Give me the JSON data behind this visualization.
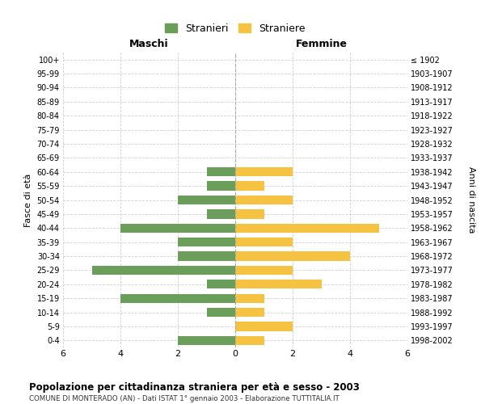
{
  "age_groups": [
    "100+",
    "95-99",
    "90-94",
    "85-89",
    "80-84",
    "75-79",
    "70-74",
    "65-69",
    "60-64",
    "55-59",
    "50-54",
    "45-49",
    "40-44",
    "35-39",
    "30-34",
    "25-29",
    "20-24",
    "15-19",
    "10-14",
    "5-9",
    "0-4"
  ],
  "birth_years": [
    "≤ 1902",
    "1903-1907",
    "1908-1912",
    "1913-1917",
    "1918-1922",
    "1923-1927",
    "1928-1932",
    "1933-1937",
    "1938-1942",
    "1943-1947",
    "1948-1952",
    "1953-1957",
    "1958-1962",
    "1963-1967",
    "1968-1972",
    "1973-1977",
    "1978-1982",
    "1983-1987",
    "1988-1992",
    "1993-1997",
    "1998-2002"
  ],
  "maschi": [
    0,
    0,
    0,
    0,
    0,
    0,
    0,
    0,
    1,
    1,
    2,
    1,
    4,
    2,
    2,
    5,
    1,
    4,
    1,
    0,
    2
  ],
  "femmine": [
    0,
    0,
    0,
    0,
    0,
    0,
    0,
    0,
    2,
    1,
    2,
    1,
    5,
    2,
    4,
    2,
    3,
    1,
    1,
    2,
    1
  ],
  "color_maschi": "#6a9e5a",
  "color_femmine": "#f5c242",
  "title": "Popolazione per cittadinanza straniera per età e sesso - 2003",
  "subtitle": "COMUNE DI MONTERADO (AN) - Dati ISTAT 1° gennaio 2003 - Elaborazione TUTTITALIA.IT",
  "xlabel_left": "Maschi",
  "xlabel_right": "Femmine",
  "ylabel_left": "Fasce di età",
  "ylabel_right": "Anni di nascita",
  "legend_maschi": "Stranieri",
  "legend_femmine": "Straniere",
  "xlim": 6,
  "background_color": "#ffffff",
  "grid_color": "#d0d0d0"
}
